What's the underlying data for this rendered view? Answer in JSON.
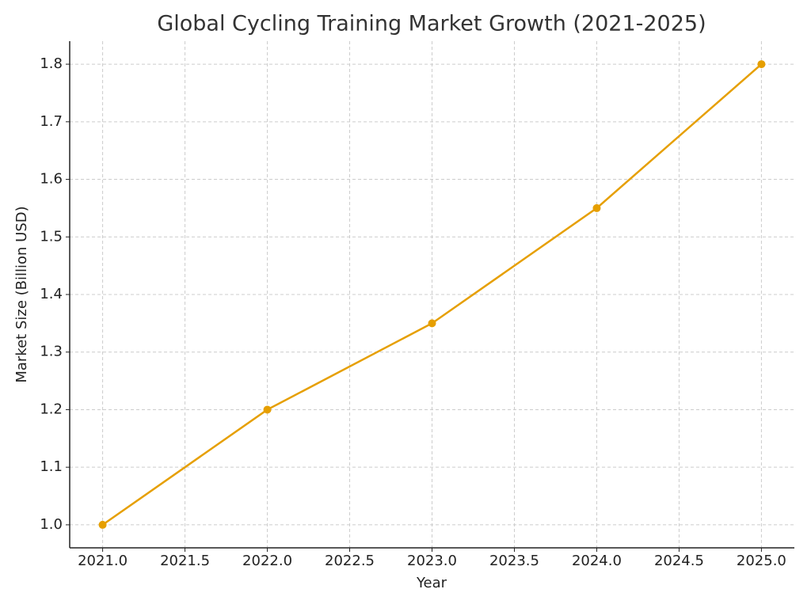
{
  "chart_data": {
    "type": "line",
    "title": "Global Cycling Training Market Growth (2021-2025)",
    "x_label": "Year",
    "y_label": "Market Size (Billion USD)",
    "x": [
      2021,
      2022,
      2023,
      2024,
      2025
    ],
    "series": [
      {
        "color": "#e69f00",
        "values": [
          1.0,
          1.2,
          1.35,
          1.55,
          1.8
        ]
      }
    ],
    "xlim": [
      2020.8,
      2025.2
    ],
    "xticks": [
      {
        "value": 2021,
        "label": "2021.0"
      },
      {
        "value": 2021.5,
        "label": "2021.5"
      },
      {
        "value": 2022,
        "label": "2022.0"
      },
      {
        "value": 2022.5,
        "label": "2022.5"
      },
      {
        "value": 2023,
        "label": "2023.0"
      },
      {
        "value": 2023.5,
        "label": "2023.5"
      },
      {
        "value": 2024,
        "label": "2024.0"
      },
      {
        "value": 2024.5,
        "label": "2024.5"
      },
      {
        "value": 2025,
        "label": "2025.0"
      }
    ],
    "ylim": [
      0.96,
      1.84
    ],
    "yticks": [
      {
        "value": 1,
        "label": "1.0"
      },
      1.1,
      1.2,
      1.3,
      1.4,
      1.5,
      1.6,
      1.7,
      1.8
    ],
    "grid": true
  }
}
